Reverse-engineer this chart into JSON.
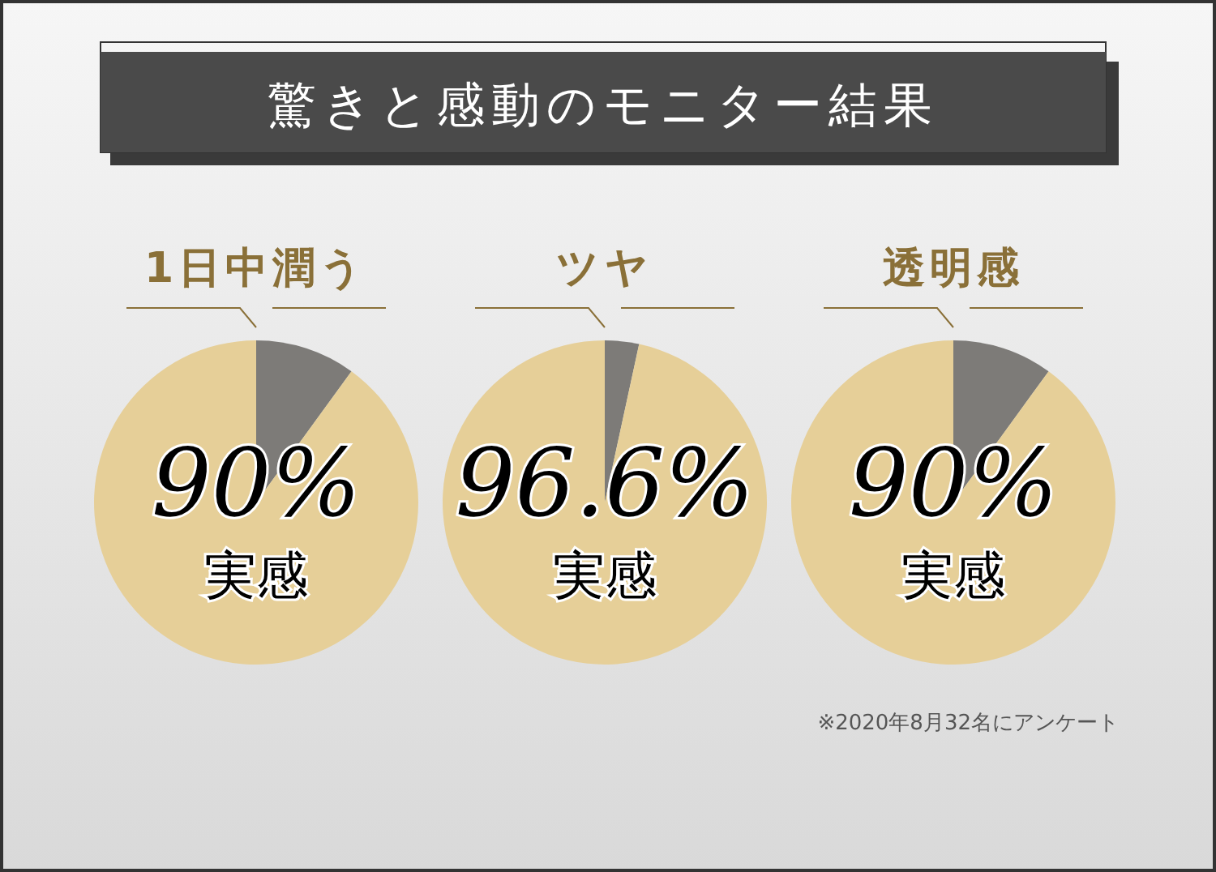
{
  "chart_data": [
    {
      "type": "other",
      "title": "驚きと感動のモニター結果",
      "annotations": [
        "※2020年8月32名にアンケート"
      ]
    },
    {
      "type": "pie",
      "title": "1日中潤う",
      "categories": [
        null,
        null
      ],
      "values": [
        10,
        90
      ],
      "colors": [
        "#7d7b78",
        "#e6cf98"
      ],
      "value_labels": [
        null,
        "90%"
      ],
      "annotations": [
        "実感"
      ]
    },
    {
      "type": "pie",
      "title": "ツヤ",
      "categories": [
        null,
        null
      ],
      "values": [
        3.4,
        96.6
      ],
      "colors": [
        "#7d7b78",
        "#e6cf98"
      ],
      "value_labels": [
        null,
        "96.6%"
      ],
      "annotations": [
        "実感"
      ]
    },
    {
      "type": "pie",
      "title": "透明感",
      "categories": [
        null,
        null
      ],
      "values": [
        10,
        90
      ],
      "colors": [
        "#7d7b78",
        "#e6cf98"
      ],
      "value_labels": [
        null,
        "90%"
      ],
      "annotations": [
        "実感"
      ]
    }
  ]
}
